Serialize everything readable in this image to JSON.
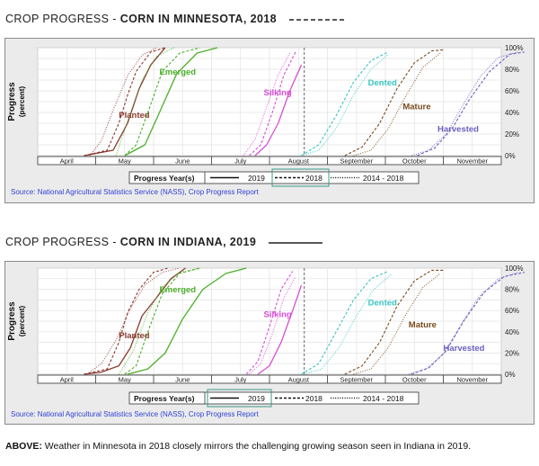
{
  "charts": [
    {
      "heading_prefix": "CROP PROGRESS - ",
      "heading_bold": "CORN IN MINNESOTA, 2018",
      "heading_rule": "dashed",
      "legend_title": "Progress Year(s)",
      "highlight_year": "2018",
      "source": "Source: National Agricultural Statistics Service (NASS), Crop Progress Report"
    },
    {
      "heading_prefix": "CROP PROGRESS - ",
      "heading_bold": "CORN IN INDIANA, 2019",
      "heading_rule": "solid",
      "legend_title": "Progress Year(s)",
      "highlight_year": "2019",
      "source": "Source: National Agricultural Statistics Service (NASS), Crop Progress Report"
    }
  ],
  "caption": {
    "lead": "ABOVE:",
    "text": " Weather in Minnesota in 2018 closely mirrors the challenging growing season seen in Indiana in 2019."
  },
  "chart_data": [
    {
      "type": "line",
      "title": "CORN IN MINNESOTA, 2018",
      "ylabel": "Progress",
      "ylabel_unit": "(percent)",
      "ylim": [
        0,
        100
      ],
      "yticks": [
        "0%",
        "20%",
        "40%",
        "60%",
        "80%",
        "100%"
      ],
      "x_axis_unit": "months since April 1",
      "xlim": [
        0,
        8
      ],
      "months": [
        "April",
        "May",
        "June",
        "July",
        "August",
        "September",
        "October",
        "November"
      ],
      "grid": true,
      "legend": [
        {
          "label": "2019",
          "style": "solid"
        },
        {
          "label": "2018",
          "style": "dashed"
        },
        {
          "label": "2014 - 2018",
          "style": "dotted"
        }
      ],
      "current_marker_x": 4.6,
      "stages": [
        {
          "name": "Planted",
          "color": "#8b3a2e",
          "label_x": 1.4,
          "label_y": 35,
          "series": [
            {
              "year": "2019",
              "style": "solid",
              "x": [
                0.8,
                1.3,
                1.55,
                1.75,
                1.95,
                2.2
              ],
              "y": [
                0,
                5,
                30,
                62,
                84,
                100
              ]
            },
            {
              "year": "2018",
              "style": "dashed",
              "x": [
                0.8,
                1.2,
                1.4,
                1.55,
                1.7,
                1.95,
                2.2
              ],
              "y": [
                0,
                5,
                30,
                56,
                78,
                96,
                100
              ]
            },
            {
              "year": "2014 - 2018",
              "style": "dotted",
              "x": [
                0.9,
                1.1,
                1.3,
                1.55,
                1.8,
                2.05
              ],
              "y": [
                0,
                14,
                42,
                74,
                93,
                100
              ]
            }
          ]
        },
        {
          "name": "Emerged",
          "color": "#4caf2a",
          "label_x": 2.1,
          "label_y": 75,
          "series": [
            {
              "year": "2019",
              "style": "solid",
              "x": [
                1.5,
                1.85,
                2.1,
                2.4,
                2.75,
                3.1
              ],
              "y": [
                0,
                10,
                40,
                76,
                95,
                100
              ]
            },
            {
              "year": "2018",
              "style": "dashed",
              "x": [
                1.5,
                1.7,
                1.9,
                2.15,
                2.45,
                2.8
              ],
              "y": [
                0,
                10,
                40,
                78,
                95,
                100
              ]
            },
            {
              "year": "2014 - 2018",
              "style": "dotted",
              "x": [
                1.35,
                1.55,
                1.8,
                2.05,
                2.35
              ],
              "y": [
                0,
                32,
                70,
                92,
                100
              ]
            }
          ]
        },
        {
          "name": "Silking",
          "color": "#d64fd6",
          "label_x": 3.9,
          "label_y": 56,
          "series": [
            {
              "year": "2019",
              "style": "solid",
              "x": [
                3.75,
                3.95,
                4.15,
                4.35,
                4.55
              ],
              "y": [
                0,
                10,
                30,
                60,
                84
              ]
            },
            {
              "year": "2018",
              "style": "dashed",
              "x": [
                3.65,
                3.85,
                4.05,
                4.25,
                4.45
              ],
              "y": [
                0,
                10,
                40,
                75,
                96
              ]
            },
            {
              "year": "2014 - 2018",
              "style": "dotted",
              "x": [
                3.55,
                3.75,
                3.95,
                4.15,
                4.35
              ],
              "y": [
                0,
                15,
                45,
                75,
                95
              ]
            }
          ]
        },
        {
          "name": "Dented",
          "color": "#39c4c4",
          "label_x": 5.7,
          "label_y": 65,
          "series": [
            {
              "year": "2018",
              "style": "dashed",
              "x": [
                4.55,
                4.85,
                5.15,
                5.45,
                5.75,
                6.05
              ],
              "y": [
                0,
                10,
                37,
                68,
                88,
                96
              ]
            },
            {
              "year": "2014 - 2018",
              "style": "dotted",
              "x": [
                4.55,
                4.85,
                5.15,
                5.45,
                5.75,
                6.05
              ],
              "y": [
                0,
                5,
                25,
                56,
                80,
                94
              ]
            }
          ]
        },
        {
          "name": "Mature",
          "color": "#7a4a1c",
          "label_x": 6.3,
          "label_y": 43,
          "series": [
            {
              "year": "2018",
              "style": "dashed",
              "x": [
                5.3,
                5.6,
                5.9,
                6.2,
                6.5,
                6.8,
                7.0
              ],
              "y": [
                0,
                8,
                30,
                62,
                86,
                97,
                98
              ]
            },
            {
              "year": "2014 - 2018",
              "style": "dotted",
              "x": [
                5.45,
                5.75,
                6.05,
                6.35,
                6.65,
                6.95
              ],
              "y": [
                0,
                5,
                25,
                55,
                82,
                95
              ]
            }
          ]
        },
        {
          "name": "Harvested",
          "color": "#6a5fbf",
          "label_x": 6.9,
          "label_y": 22,
          "series": [
            {
              "year": "2018",
              "style": "dashed",
              "x": [
                6.55,
                6.85,
                7.15,
                7.45,
                7.8,
                8.15,
                8.4
              ],
              "y": [
                0,
                7,
                25,
                52,
                78,
                94,
                96
              ]
            },
            {
              "year": "2014 - 2018",
              "style": "dotted",
              "x": [
                6.45,
                6.75,
                7.05,
                7.35,
                7.65,
                7.95,
                8.3
              ],
              "y": [
                0,
                5,
                20,
                48,
                74,
                91,
                96
              ]
            }
          ]
        }
      ]
    },
    {
      "type": "line",
      "title": "CORN IN INDIANA, 2019",
      "ylabel": "Progress",
      "ylabel_unit": "(percent)",
      "ylim": [
        0,
        100
      ],
      "yticks": [
        "0%",
        "20%",
        "40%",
        "60%",
        "80%",
        "100%"
      ],
      "x_axis_unit": "months since April 1",
      "xlim": [
        0,
        8
      ],
      "months": [
        "April",
        "May",
        "June",
        "July",
        "August",
        "September",
        "October",
        "November"
      ],
      "grid": true,
      "legend": [
        {
          "label": "2019",
          "style": "solid"
        },
        {
          "label": "2018",
          "style": "dashed"
        },
        {
          "label": "2014 - 2018",
          "style": "dotted"
        }
      ],
      "current_marker_x": 4.6,
      "stages": [
        {
          "name": "Planted",
          "color": "#8b3a2e",
          "label_x": 1.4,
          "label_y": 34,
          "series": [
            {
              "year": "2019",
              "style": "solid",
              "x": [
                0.8,
                1.1,
                1.4,
                1.6,
                1.8,
                2.05,
                2.3,
                2.55
              ],
              "y": [
                0,
                2,
                8,
                25,
                55,
                72,
                90,
                100
              ]
            },
            {
              "year": "2018",
              "style": "dashed",
              "x": [
                0.8,
                1.2,
                1.4,
                1.55,
                1.75,
                2.0,
                2.25
              ],
              "y": [
                0,
                5,
                30,
                58,
                80,
                96,
                100
              ]
            },
            {
              "year": "2014 - 2018",
              "style": "dotted",
              "x": [
                0.85,
                1.1,
                1.35,
                1.6,
                1.85,
                2.15,
                2.45
              ],
              "y": [
                0,
                10,
                32,
                62,
                84,
                96,
                100
              ]
            }
          ]
        },
        {
          "name": "Emerged",
          "color": "#4caf2a",
          "label_x": 2.1,
          "label_y": 77,
          "series": [
            {
              "year": "2019",
              "style": "solid",
              "x": [
                1.55,
                1.9,
                2.2,
                2.5,
                2.85,
                3.25,
                3.6
              ],
              "y": [
                0,
                5,
                20,
                52,
                80,
                95,
                100
              ]
            },
            {
              "year": "2018",
              "style": "dashed",
              "x": [
                1.5,
                1.7,
                1.9,
                2.15,
                2.45,
                2.8
              ],
              "y": [
                0,
                8,
                40,
                76,
                95,
                100
              ]
            },
            {
              "year": "2014 - 2018",
              "style": "dotted",
              "x": [
                1.4,
                1.65,
                1.9,
                2.15,
                2.45,
                2.8
              ],
              "y": [
                0,
                22,
                58,
                82,
                96,
                100
              ]
            }
          ]
        },
        {
          "name": "Silking",
          "color": "#d64fd6",
          "label_x": 3.9,
          "label_y": 54,
          "series": [
            {
              "year": "2019",
              "style": "solid",
              "x": [
                3.8,
                4.0,
                4.2,
                4.4,
                4.55
              ],
              "y": [
                0,
                8,
                30,
                60,
                84
              ]
            },
            {
              "year": "2018",
              "style": "dashed",
              "x": [
                3.6,
                3.8,
                4.0,
                4.2,
                4.4
              ],
              "y": [
                0,
                12,
                45,
                80,
                97
              ]
            },
            {
              "year": "2014 - 2018",
              "style": "dotted",
              "x": [
                3.65,
                3.85,
                4.05,
                4.25,
                4.45
              ],
              "y": [
                0,
                10,
                38,
                72,
                92
              ]
            }
          ]
        },
        {
          "name": "Dented",
          "color": "#39c4c4",
          "label_x": 5.7,
          "label_y": 65,
          "series": [
            {
              "year": "2018",
              "style": "dashed",
              "x": [
                4.55,
                4.85,
                5.15,
                5.45,
                5.75,
                6.05
              ],
              "y": [
                0,
                10,
                40,
                70,
                90,
                97
              ]
            },
            {
              "year": "2014 - 2018",
              "style": "dotted",
              "x": [
                4.6,
                4.9,
                5.2,
                5.5,
                5.8,
                6.1
              ],
              "y": [
                0,
                5,
                25,
                55,
                80,
                94
              ]
            }
          ]
        },
        {
          "name": "Mature",
          "color": "#7a4a1c",
          "label_x": 6.4,
          "label_y": 44,
          "series": [
            {
              "year": "2018",
              "style": "dashed",
              "x": [
                5.3,
                5.6,
                5.9,
                6.2,
                6.5,
                6.8,
                7.0
              ],
              "y": [
                0,
                8,
                30,
                64,
                88,
                98,
                98
              ]
            },
            {
              "year": "2014 - 2018",
              "style": "dotted",
              "x": [
                5.45,
                5.75,
                6.05,
                6.35,
                6.65,
                6.95
              ],
              "y": [
                0,
                5,
                25,
                56,
                82,
                95
              ]
            }
          ]
        },
        {
          "name": "Harvested",
          "color": "#6a5fbf",
          "label_x": 7.0,
          "label_y": 22,
          "series": [
            {
              "year": "2018",
              "style": "dashed",
              "x": [
                6.45,
                6.75,
                7.05,
                7.35,
                7.7,
                8.05,
                8.4
              ],
              "y": [
                0,
                6,
                22,
                50,
                77,
                92,
                96
              ]
            },
            {
              "year": "2014 - 2018",
              "style": "dotted",
              "x": [
                6.4,
                6.7,
                7.0,
                7.3,
                7.6,
                7.95,
                8.3
              ],
              "y": [
                0,
                5,
                19,
                46,
                72,
                90,
                96
              ]
            }
          ]
        }
      ]
    }
  ]
}
